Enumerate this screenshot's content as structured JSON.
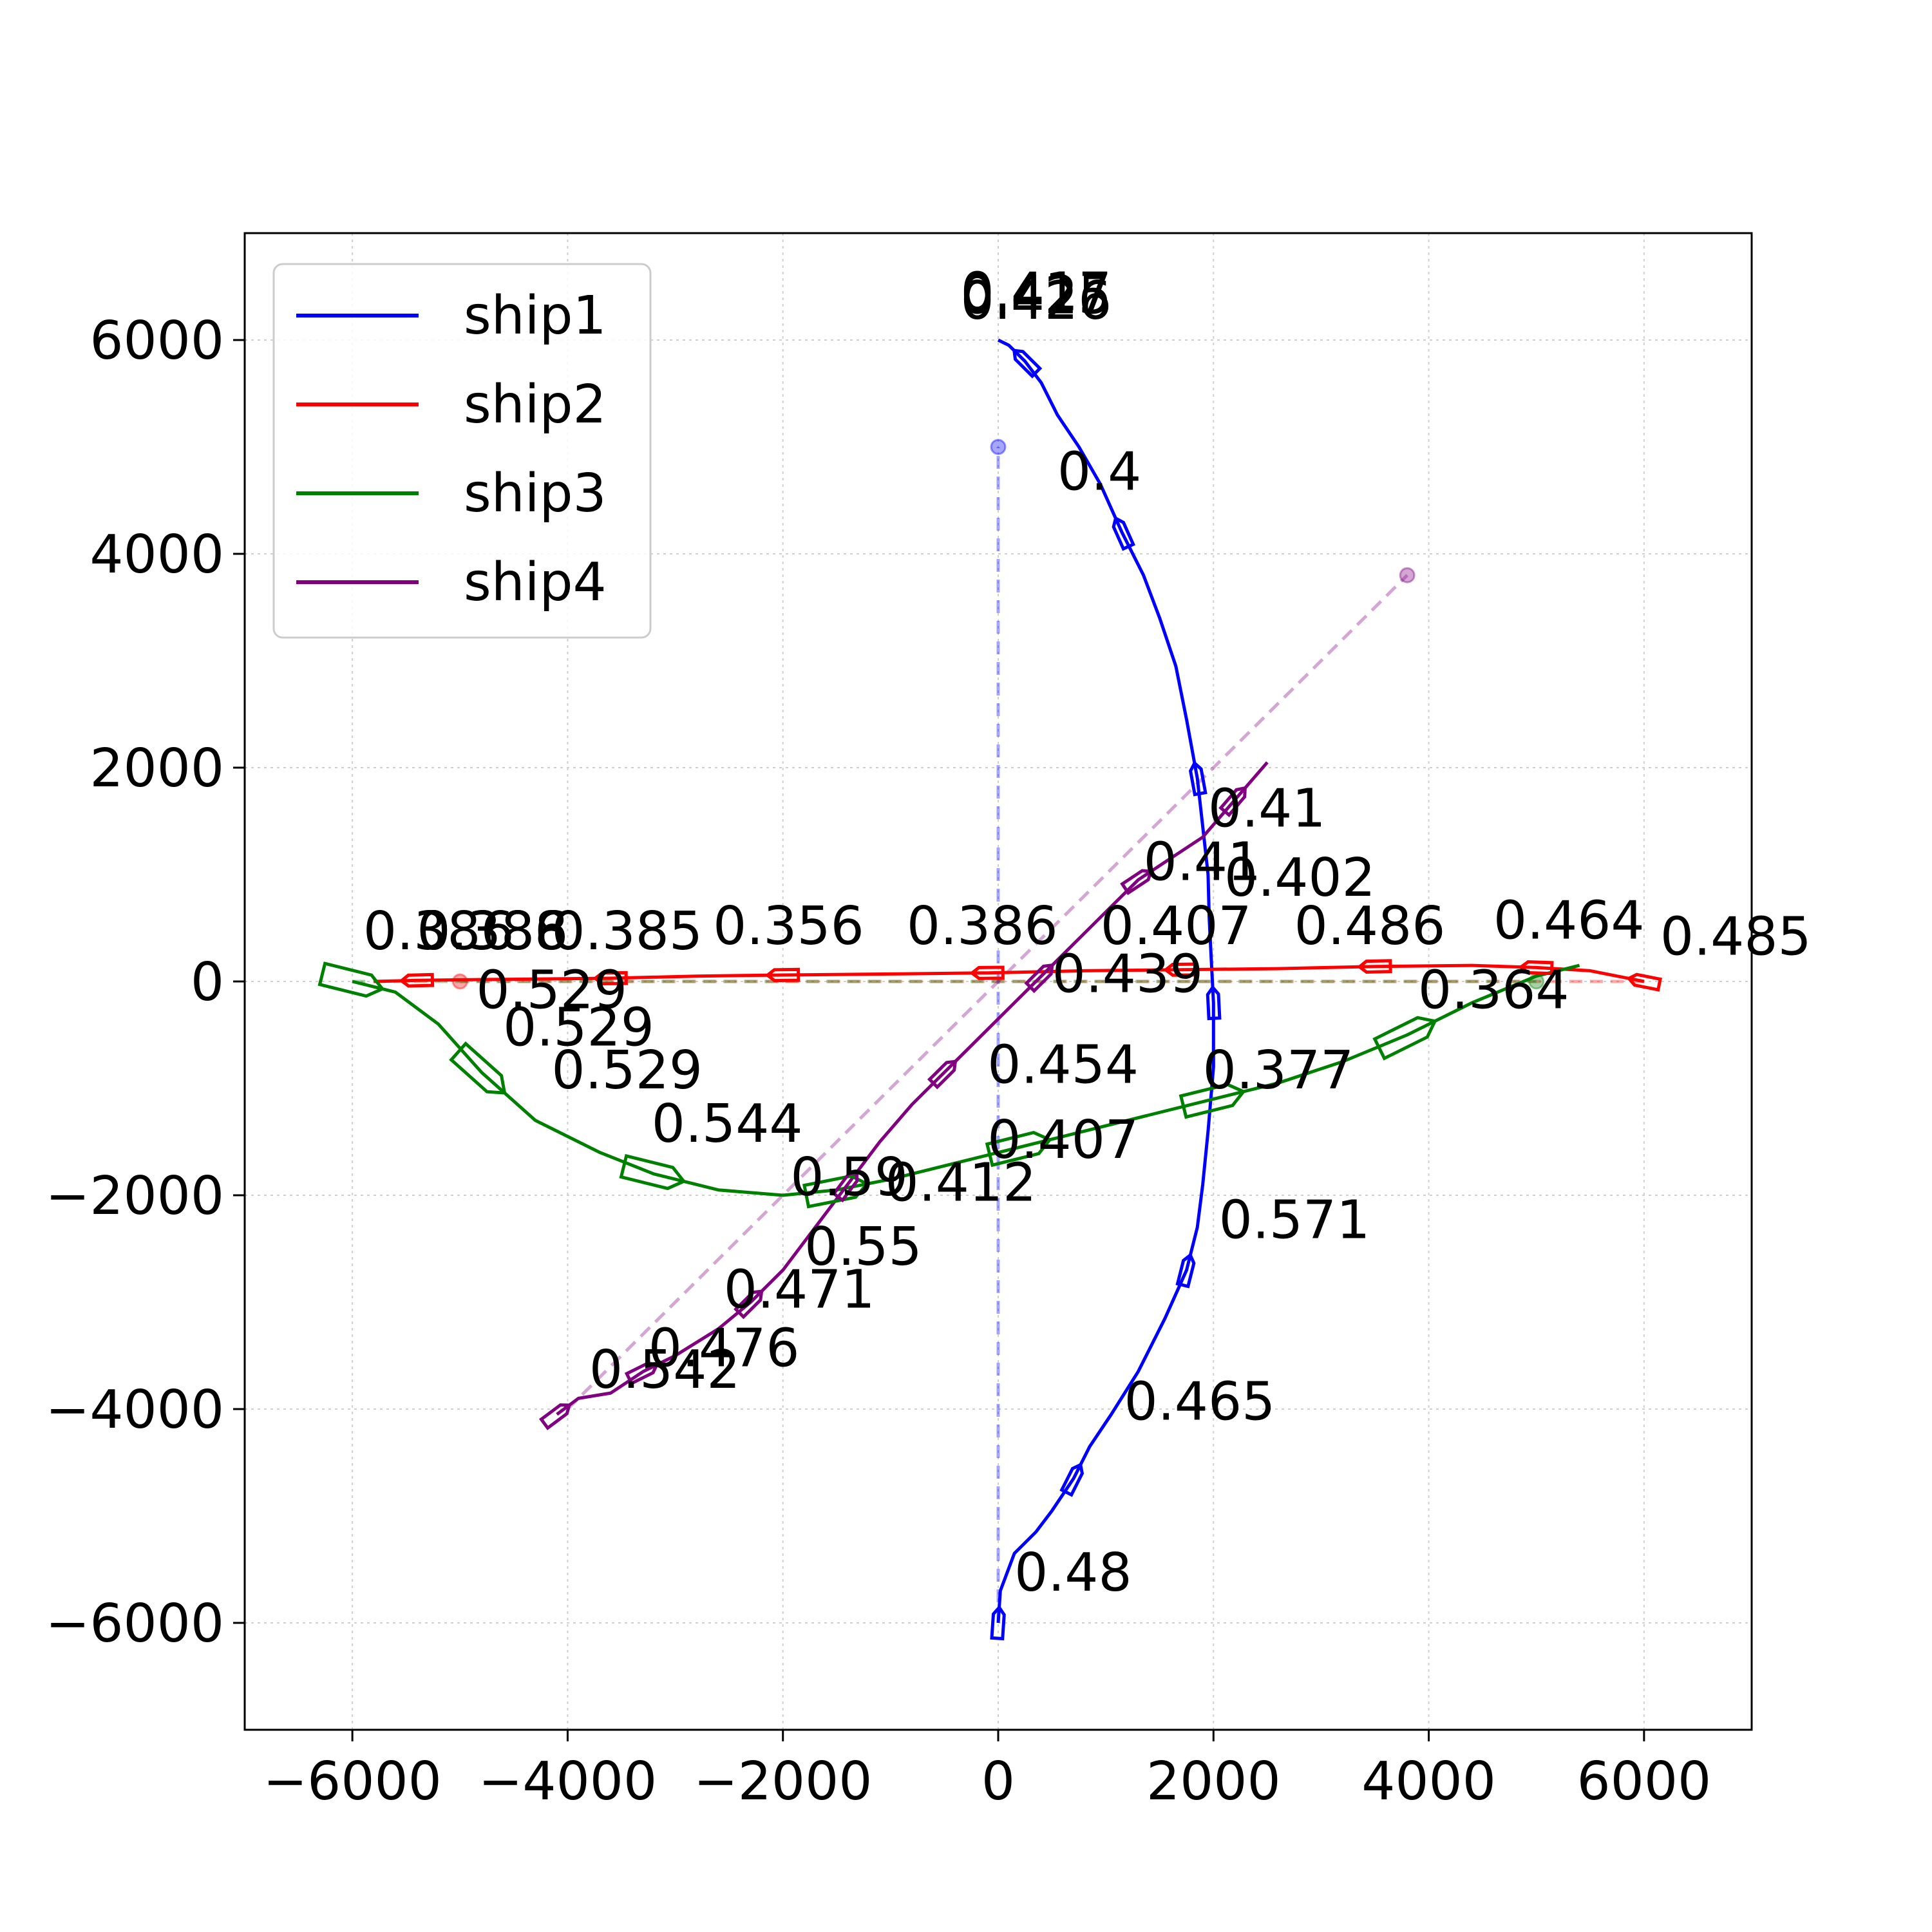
{
  "chart_data": {
    "type": "line",
    "xlim": [
      -7000,
      7000
    ],
    "ylim": [
      -7000,
      7000
    ],
    "xticks": [
      "−6000",
      "−4000",
      "−2000",
      "0",
      "2000",
      "4000",
      "6000"
    ],
    "xtick_values": [
      -6000,
      -4000,
      -2000,
      0,
      2000,
      4000,
      6000
    ],
    "yticks": [
      "−6000",
      "−4000",
      "−2000",
      "0",
      "2000",
      "4000",
      "6000"
    ],
    "ytick_values": [
      -6000,
      -4000,
      -2000,
      0,
      2000,
      4000,
      6000
    ],
    "grid": true,
    "legend_position": "top-left",
    "series": [
      {
        "name": "ship1",
        "color": "#0000ff",
        "x": [
          0,
          20,
          150,
          350,
          500,
          700,
          850,
          1050,
          1300,
          1550,
          1750,
          1850,
          1900,
          1950,
          2000,
          2000,
          1980,
          1960,
          1950,
          1900,
          1850,
          1750,
          1650,
          1500,
          1350,
          1150,
          950,
          750,
          550,
          400,
          250,
          100,
          0
        ],
        "y": [
          -6000,
          -5700,
          -5350,
          -5150,
          -4950,
          -4650,
          -4350,
          -4050,
          -3650,
          -3150,
          -2700,
          -2300,
          -1900,
          -1400,
          -800,
          -200,
          200,
          600,
          1000,
          1450,
          1900,
          2450,
          2950,
          3400,
          3800,
          4200,
          4650,
          5000,
          5300,
          5600,
          5800,
          5950,
          6000
        ],
        "start": [
          0,
          -6000
        ],
        "goal": [
          0,
          5000
        ],
        "labels": [
          {
            "text": "0.48",
            "x": 150,
            "y": -5700
          },
          {
            "text": "0.465",
            "x": 1170,
            "y": -4100
          },
          {
            "text": "0.571",
            "x": 2050,
            "y": -2400
          },
          {
            "text": "0.407",
            "x": 950,
            "y": 350
          },
          {
            "text": "0.41",
            "x": 1350,
            "y": 950
          },
          {
            "text": "0.4",
            "x": 550,
            "y": 4600
          },
          {
            "text": "0.426",
            "x": -350,
            "y": 6200
          },
          {
            "text": "0.425",
            "x": -350,
            "y": 6250
          },
          {
            "text": "0.417",
            "x": -350,
            "y": 6280
          }
        ]
      },
      {
        "name": "ship2",
        "color": "#ff0000",
        "x": [
          6000,
          5500,
          5000,
          4400,
          3500,
          2600,
          1700,
          800,
          -100,
          -1000,
          -2000,
          -2800,
          -3600,
          -4600,
          -5400,
          -5800
        ],
        "y": [
          0,
          100,
          130,
          150,
          140,
          120,
          110,
          100,
          80,
          70,
          60,
          50,
          30,
          20,
          10,
          0
        ],
        "start": [
          6000,
          0
        ],
        "goal": [
          -5000,
          0
        ],
        "labels": [
          {
            "text": "0.485",
            "x": 6150,
            "y": 250
          },
          {
            "text": "0.464",
            "x": 4600,
            "y": 400
          },
          {
            "text": "0.486",
            "x": 2750,
            "y": 350
          },
          {
            "text": "0.402",
            "x": 2100,
            "y": 800
          },
          {
            "text": "0.439",
            "x": 500,
            "y": -100
          },
          {
            "text": "0.386",
            "x": -850,
            "y": 350
          },
          {
            "text": "0.356",
            "x": -2650,
            "y": 350
          },
          {
            "text": "0.385",
            "x": -4150,
            "y": 300
          },
          {
            "text": "0.386",
            "x": -5400,
            "y": 300
          },
          {
            "text": "0.388",
            "x": -5400,
            "y": 300
          },
          {
            "text": "0.386",
            "x": -5900,
            "y": 300
          }
        ]
      },
      {
        "name": "ship3",
        "color": "#008000",
        "x": [
          -6000,
          -5600,
          -5200,
          -4800,
          -4300,
          -3700,
          -3200,
          -2600,
          -2000,
          -1500,
          -1000,
          -400,
          200,
          800,
          1400,
          2000,
          2600,
          3200,
          3800,
          4400,
          5000,
          5400
        ],
        "y": [
          0,
          -100,
          -400,
          -850,
          -1300,
          -1600,
          -1800,
          -1950,
          -2000,
          -1950,
          -1850,
          -1700,
          -1550,
          -1400,
          -1250,
          -1100,
          -950,
          -750,
          -500,
          -200,
          50,
          150
        ],
        "start": [
          -6000,
          0
        ],
        "goal": [
          5000,
          0
        ],
        "labels": [
          {
            "text": "0.529",
            "x": -4850,
            "y": -250
          },
          {
            "text": "0.529",
            "x": -4600,
            "y": -600
          },
          {
            "text": "0.529",
            "x": -4150,
            "y": -1000
          },
          {
            "text": "0.544",
            "x": -3220,
            "y": -1500
          },
          {
            "text": "0.59",
            "x": -1930,
            "y": -2000
          },
          {
            "text": "0.412",
            "x": -1050,
            "y": -2050
          },
          {
            "text": "0.407",
            "x": -100,
            "y": -1650
          },
          {
            "text": "0.377",
            "x": 1900,
            "y": -1000
          },
          {
            "text": "0.364",
            "x": 3900,
            "y": -250
          }
        ]
      },
      {
        "name": "ship4",
        "color": "#800080",
        "x": [
          -4100,
          -3900,
          -3600,
          -3300,
          -3000,
          -2600,
          -2300,
          -2000,
          -1700,
          -1400,
          -1100,
          -800,
          -500,
          -200,
          100,
          400,
          700,
          1000,
          1300,
          1600,
          1900,
          2200,
          2500
        ],
        "y": [
          -4050,
          -3900,
          -3850,
          -3650,
          -3500,
          -3250,
          -3000,
          -2700,
          -2300,
          -1900,
          -1500,
          -1150,
          -850,
          -550,
          -250,
          50,
          350,
          650,
          950,
          1150,
          1350,
          1700,
          2050
        ],
        "start": [
          -4000,
          -4000
        ],
        "goal": [
          3800,
          3800
        ],
        "labels": [
          {
            "text": "0.542",
            "x": -3800,
            "y": -3800
          },
          {
            "text": "0.476",
            "x": -3250,
            "y": -3600
          },
          {
            "text": "0.471",
            "x": -2550,
            "y": -3050
          },
          {
            "text": "0.55",
            "x": -1800,
            "y": -2650
          },
          {
            "text": "0.454",
            "x": -100,
            "y": -950
          },
          {
            "text": "0.41",
            "x": 1950,
            "y": 1450
          }
        ]
      }
    ]
  }
}
